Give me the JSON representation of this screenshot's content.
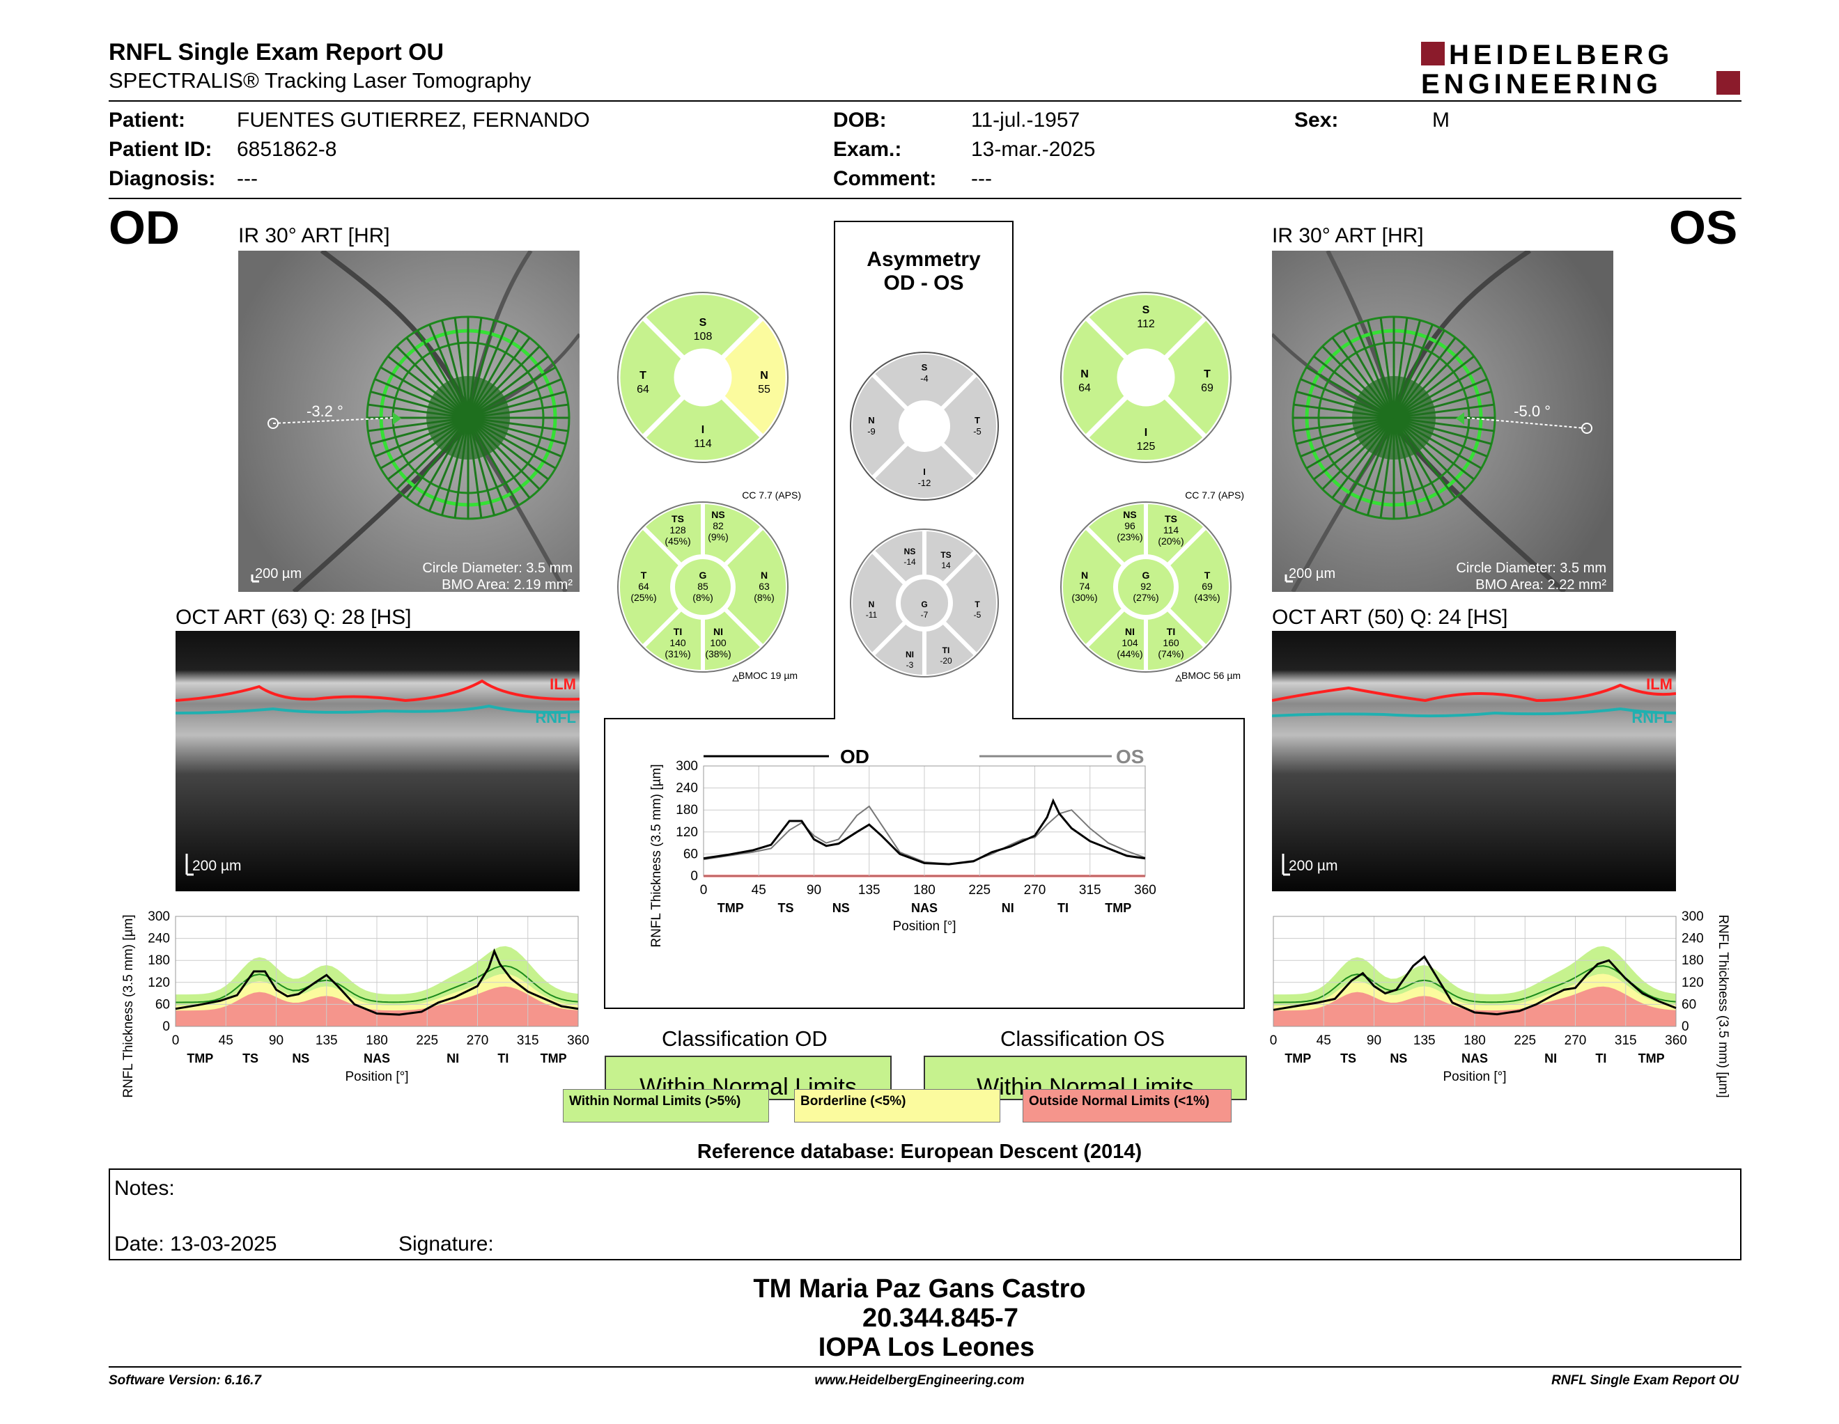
{
  "header": {
    "title": "RNFL Single Exam Report OU",
    "subtitle": "SPECTRALIS® Tracking Laser Tomography",
    "logo_line1": "HEIDELBERG",
    "logo_line2": "ENGINEERING"
  },
  "patient": {
    "patient_label": "Patient:",
    "patient_value": "FUENTES GUTIERREZ, FERNANDO",
    "id_label": "Patient ID:",
    "id_value": "6851862-8",
    "diag_label": "Diagnosis:",
    "diag_value": "---",
    "dob_label": "DOB:",
    "dob_value": "11-jul.-1957",
    "exam_label": "Exam.:",
    "exam_value": "13-mar.-2025",
    "comment_label": "Comment:",
    "comment_value": "---",
    "sex_label": "Sex:",
    "sex_value": "M"
  },
  "od": {
    "eye": "OD",
    "ir_title": "IR 30° ART [HR]",
    "angle": "-3.2 °",
    "scale": "200 µm",
    "circle_diameter": "Circle Diameter: 3.5 mm",
    "bmo_area": "BMO Area: 2.19 mm²",
    "oct_title": "OCT ART (63) Q: 28 [HS]",
    "oct_scale": "200 µm",
    "ilm": "ILM",
    "rnfl": "RNFL",
    "cc": "CC 7.7 (APS)",
    "bmoc": "BMOC 19 µm",
    "quad": {
      "S": "108",
      "T": "64",
      "N": "55",
      "I": "114"
    },
    "sect": {
      "TS": [
        "128",
        "(45%)"
      ],
      "NS": [
        "82",
        "(9%)"
      ],
      "T": [
        "64",
        "(25%)"
      ],
      "G": [
        "85",
        "(8%)"
      ],
      "N": [
        "63",
        "(8%)"
      ],
      "TI": [
        "140",
        "(31%)"
      ],
      "NI": [
        "100",
        "(38%)"
      ]
    }
  },
  "os": {
    "eye": "OS",
    "ir_title": "IR 30° ART [HR]",
    "angle": "-5.0 °",
    "scale": "200 µm",
    "circle_diameter": "Circle Diameter: 3.5 mm",
    "bmo_area": "BMO Area: 2.22 mm²",
    "oct_title": "OCT ART (50) Q: 24 [HS]",
    "oct_scale": "200 µm",
    "ilm": "ILM",
    "rnfl": "RNFL",
    "cc": "CC 7.7 (APS)",
    "bmoc": "BMOC 56 µm",
    "quad": {
      "S": "112",
      "N": "64",
      "T": "69",
      "I": "125"
    },
    "sect": {
      "NS": [
        "96",
        "(23%)"
      ],
      "TS": [
        "114",
        "(20%)"
      ],
      "N": [
        "74",
        "(30%)"
      ],
      "G": [
        "92",
        "(27%)"
      ],
      "T": [
        "69",
        "(43%)"
      ],
      "NI": [
        "104",
        "(44%)"
      ],
      "TI": [
        "160",
        "(74%)"
      ]
    }
  },
  "asym": {
    "title1": "Asymmetry",
    "title2": "OD - OS",
    "quad": {
      "S": "-4",
      "N": "-9",
      "T": "-5",
      "I": "-12"
    },
    "sect": {
      "NS": "-14",
      "TS": "14",
      "N": "-11",
      "G": "-7",
      "T": "-5",
      "NI": "-3",
      "TI": "-20"
    }
  },
  "chart_data": [
    {
      "type": "line",
      "title": "",
      "xlabel": "Position [°]",
      "ylabel": "RNFL Thickness (3.5 mm) [µm]",
      "ylim": [
        0,
        300
      ],
      "xlim": [
        0,
        360
      ],
      "x_ticks": [
        0,
        45,
        90,
        135,
        180,
        225,
        270,
        315,
        360
      ],
      "y_ticks": [
        0,
        60,
        120,
        180,
        240,
        300
      ],
      "sector_labels": [
        "TMP",
        "TS",
        "NS",
        "NAS",
        "NI",
        "TI",
        "TMP"
      ],
      "series": [
        {
          "name": "OD",
          "x": [
            0,
            20,
            40,
            55,
            70,
            80,
            90,
            100,
            110,
            125,
            135,
            145,
            160,
            180,
            200,
            220,
            235,
            250,
            260,
            270,
            280,
            285,
            290,
            300,
            315,
            330,
            345,
            360
          ],
          "values": [
            48,
            58,
            70,
            85,
            150,
            150,
            100,
            82,
            88,
            120,
            140,
            110,
            60,
            35,
            32,
            40,
            65,
            80,
            95,
            110,
            160,
            205,
            170,
            130,
            95,
            75,
            55,
            48
          ]
        },
        {
          "name": "OS",
          "x": [
            0,
            20,
            40,
            55,
            70,
            80,
            90,
            100,
            110,
            125,
            135,
            145,
            160,
            180,
            200,
            220,
            235,
            250,
            260,
            270,
            280,
            290,
            300,
            315,
            330,
            345,
            360
          ],
          "values": [
            45,
            55,
            65,
            75,
            125,
            145,
            110,
            90,
            100,
            165,
            190,
            140,
            65,
            38,
            33,
            42,
            60,
            85,
            100,
            105,
            140,
            170,
            180,
            130,
            90,
            68,
            50
          ]
        }
      ],
      "legend": "top"
    },
    {
      "type": "line",
      "title": "",
      "xlabel": "Position [°]",
      "ylabel": "RNFL Thickness (3.5 mm) [µm]",
      "ylim": [
        0,
        300
      ],
      "x_ticks": [
        0,
        45,
        90,
        135,
        180,
        225,
        270,
        315,
        360
      ],
      "y_ticks": [
        0,
        60,
        120,
        180,
        240,
        300
      ],
      "sector_labels": [
        "TMP",
        "TS",
        "NS",
        "NAS",
        "NI",
        "TI",
        "TMP"
      ],
      "series": [
        {
          "name": "OD",
          "x": [
            0,
            20,
            40,
            55,
            70,
            80,
            90,
            100,
            110,
            125,
            135,
            145,
            160,
            180,
            200,
            220,
            235,
            250,
            260,
            270,
            280,
            285,
            290,
            300,
            315,
            330,
            345,
            360
          ],
          "values": [
            48,
            58,
            70,
            85,
            150,
            150,
            100,
            82,
            88,
            120,
            140,
            110,
            60,
            35,
            32,
            40,
            65,
            80,
            95,
            110,
            160,
            205,
            170,
            130,
            95,
            75,
            55,
            48
          ]
        }
      ]
    },
    {
      "type": "line",
      "title": "",
      "xlabel": "Position [°]",
      "ylabel": "RNFL Thickness (3.5 mm) [µm]",
      "ylim": [
        0,
        300
      ],
      "x_ticks": [
        0,
        45,
        90,
        135,
        180,
        225,
        270,
        315,
        360
      ],
      "y_ticks": [
        0,
        60,
        120,
        180,
        240,
        300
      ],
      "sector_labels": [
        "TMP",
        "TS",
        "NS",
        "NAS",
        "NI",
        "TI",
        "TMP"
      ],
      "series": [
        {
          "name": "OS",
          "x": [
            0,
            20,
            40,
            55,
            70,
            80,
            90,
            100,
            110,
            125,
            135,
            145,
            160,
            180,
            200,
            220,
            235,
            250,
            260,
            270,
            280,
            290,
            300,
            315,
            330,
            345,
            360
          ],
          "values": [
            45,
            55,
            65,
            75,
            125,
            145,
            110,
            90,
            100,
            165,
            190,
            140,
            65,
            38,
            33,
            42,
            60,
            85,
            100,
            105,
            140,
            170,
            180,
            130,
            90,
            68,
            50
          ]
        }
      ]
    }
  ],
  "classification": {
    "od_title": "Classification OD",
    "os_title": "Classification OS",
    "od_value": "Within Normal Limits",
    "os_value": "Within Normal Limits",
    "legend_wnl": "Within Normal Limits (>5%)",
    "legend_bl": "Borderline (<5%)",
    "legend_onl": "Outside Normal Limits (<1%)",
    "colors": {
      "wnl": "#c6f28e",
      "bl": "#fbfb9e",
      "onl": "#f5958c",
      "na": "#d0d0d0"
    }
  },
  "reference": "Reference database: European Descent (2014)",
  "notes": {
    "notes_label": "Notes:",
    "date_label": "Date: 13-03-2025",
    "signature_label": "Signature:"
  },
  "stamp": {
    "line1": "TM Maria Paz Gans Castro",
    "line2": "20.344.845-7",
    "line3": "IOPA Los Leones"
  },
  "footer": {
    "software": "Software Version: 6.16.7",
    "website": "www.HeidelbergEngineering.com",
    "report": "RNFL Single Exam Report OU"
  }
}
